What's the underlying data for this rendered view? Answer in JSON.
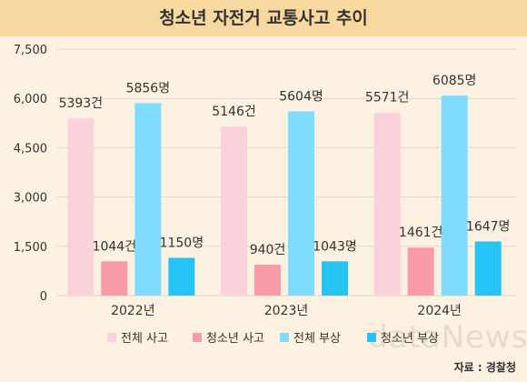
{
  "chart_data": {
    "type": "bar",
    "title": "청소년 자전거 교통사고 추이",
    "categories": [
      "2022년",
      "2023년",
      "2024년"
    ],
    "series": [
      {
        "name": "전체 사고",
        "color": "#fbd2dc",
        "values": [
          5393,
          5146,
          5571
        ],
        "labels": [
          "5393건",
          "5146건",
          "5571건"
        ]
      },
      {
        "name": "청소년 사고",
        "color": "#f99aa8",
        "values": [
          1044,
          940,
          1461
        ],
        "labels": [
          "1044건",
          "940건",
          "1461건"
        ]
      },
      {
        "name": "전체 부상",
        "color": "#7fdcff",
        "values": [
          5856,
          5604,
          6085
        ],
        "labels": [
          "5856명",
          "5604명",
          "6085명"
        ]
      },
      {
        "name": "청소년 부상",
        "color": "#26c4f4",
        "values": [
          1150,
          1043,
          1647
        ],
        "labels": [
          "1150명",
          "1043명",
          "1647명"
        ]
      }
    ],
    "yticks": [
      "0",
      "1,500",
      "3,000",
      "4,500",
      "6,000",
      "7,500"
    ],
    "ytick_values": [
      0,
      1500,
      3000,
      4500,
      6000,
      7500
    ],
    "ylim": [
      0,
      7500
    ],
    "grid": true,
    "legend": "bottom"
  },
  "source": "자료 : 경찰청",
  "watermark": "dataNews"
}
